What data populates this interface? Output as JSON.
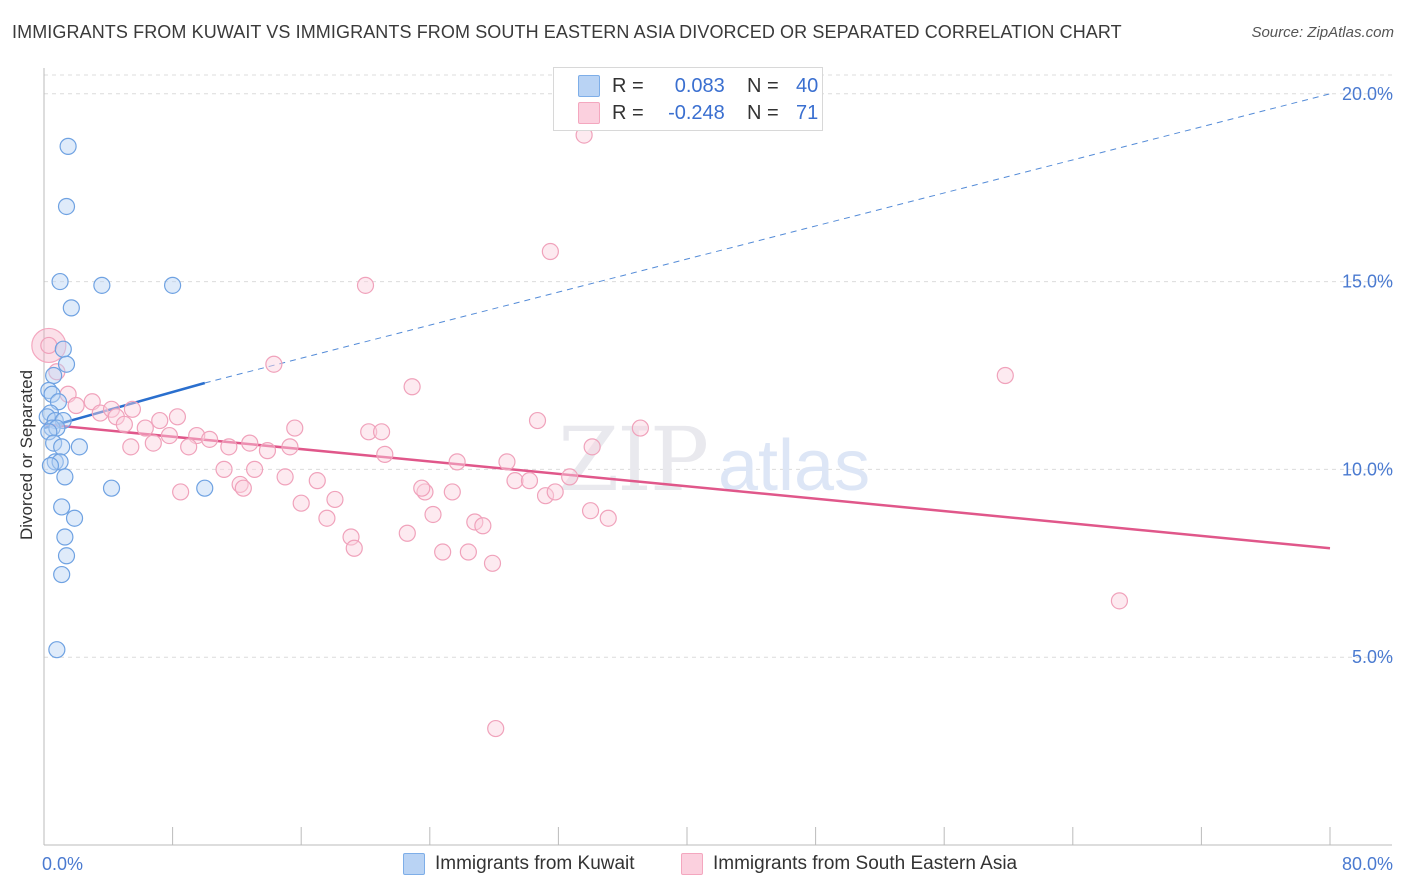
{
  "chart_data": {
    "type": "scatter",
    "title": "IMMIGRANTS FROM KUWAIT VS IMMIGRANTS FROM SOUTH EASTERN ASIA DIVORCED OR SEPARATED CORRELATION CHART",
    "source": "Source: ZipAtlas.com",
    "ylabel": "Divorced or Separated",
    "xlabel": "",
    "xlim": [
      0,
      80
    ],
    "ylim": [
      0,
      20.5
    ],
    "x_tick_labels": [
      "0.0%",
      "80.0%"
    ],
    "y_ticks": [
      5,
      10,
      15,
      20
    ],
    "y_tick_labels": [
      "5.0%",
      "10.0%",
      "15.0%",
      "20.0%"
    ],
    "grid": true,
    "legend_position": "top-center",
    "watermark": "ZIPatlas",
    "series": [
      {
        "name": "Immigrants from Kuwait",
        "color": "#7eaee8",
        "r": "0.083",
        "n": "40",
        "trend": {
          "x0": 0,
          "y0": 11.1,
          "x1": 10,
          "y1": 12.3,
          "dashed_to_x": 80,
          "dashed_to_y": 20.0,
          "color": "#2a6fce"
        },
        "points": [
          [
            1.5,
            18.6
          ],
          [
            1.4,
            17.0
          ],
          [
            1.0,
            15.0
          ],
          [
            3.6,
            14.9
          ],
          [
            8.0,
            14.9
          ],
          [
            1.7,
            14.3
          ],
          [
            1.2,
            13.2
          ],
          [
            1.4,
            12.8
          ],
          [
            0.6,
            12.5
          ],
          [
            0.3,
            12.1
          ],
          [
            0.5,
            12.0
          ],
          [
            0.9,
            11.8
          ],
          [
            0.4,
            11.5
          ],
          [
            0.2,
            11.4
          ],
          [
            0.7,
            11.3
          ],
          [
            1.2,
            11.3
          ],
          [
            0.5,
            11.1
          ],
          [
            0.8,
            11.1
          ],
          [
            0.3,
            11.0
          ],
          [
            0.6,
            10.7
          ],
          [
            1.1,
            10.6
          ],
          [
            2.2,
            10.6
          ],
          [
            0.7,
            10.2
          ],
          [
            1.0,
            10.2
          ],
          [
            0.4,
            10.1
          ],
          [
            1.3,
            9.8
          ],
          [
            4.2,
            9.5
          ],
          [
            10.0,
            9.5
          ],
          [
            1.1,
            9.0
          ],
          [
            1.9,
            8.7
          ],
          [
            1.3,
            8.2
          ],
          [
            1.4,
            7.7
          ],
          [
            1.1,
            7.2
          ],
          [
            0.8,
            5.2
          ]
        ]
      },
      {
        "name": "Immigrants from South Eastern Asia",
        "color": "#f4a7bf",
        "r": "-0.248",
        "n": "71",
        "trend": {
          "x0": 0,
          "y0": 11.2,
          "x1": 80,
          "y1": 7.9,
          "color": "#e0578a"
        },
        "points": [
          [
            0.3,
            13.3
          ],
          [
            0.8,
            12.6
          ],
          [
            1.5,
            12.0
          ],
          [
            2.0,
            11.7
          ],
          [
            3.0,
            11.8
          ],
          [
            3.5,
            11.5
          ],
          [
            4.2,
            11.6
          ],
          [
            5.5,
            11.6
          ],
          [
            4.5,
            11.4
          ],
          [
            5.0,
            11.2
          ],
          [
            6.3,
            11.1
          ],
          [
            7.2,
            11.3
          ],
          [
            8.3,
            11.4
          ],
          [
            5.4,
            10.6
          ],
          [
            6.8,
            10.7
          ],
          [
            7.8,
            10.9
          ],
          [
            9.5,
            10.9
          ],
          [
            9.0,
            10.6
          ],
          [
            10.3,
            10.8
          ],
          [
            11.5,
            10.6
          ],
          [
            12.8,
            10.7
          ],
          [
            13.9,
            10.5
          ],
          [
            15.3,
            10.6
          ],
          [
            11.2,
            10.0
          ],
          [
            13.1,
            10.0
          ],
          [
            15.0,
            9.8
          ],
          [
            12.2,
            9.6
          ],
          [
            12.4,
            9.5
          ],
          [
            17.0,
            9.7
          ],
          [
            8.5,
            9.4
          ],
          [
            14.3,
            12.8
          ],
          [
            15.6,
            11.1
          ],
          [
            20.0,
            14.9
          ],
          [
            22.9,
            12.2
          ],
          [
            20.2,
            11.0
          ],
          [
            21.0,
            11.0
          ],
          [
            21.2,
            10.4
          ],
          [
            18.1,
            9.2
          ],
          [
            16.0,
            9.1
          ],
          [
            17.6,
            8.7
          ],
          [
            23.7,
            9.4
          ],
          [
            23.5,
            9.5
          ],
          [
            25.4,
            9.4
          ],
          [
            25.7,
            10.2
          ],
          [
            24.2,
            8.8
          ],
          [
            24.8,
            7.8
          ],
          [
            22.6,
            8.3
          ],
          [
            26.8,
            8.6
          ],
          [
            27.3,
            8.5
          ],
          [
            26.4,
            7.8
          ],
          [
            27.9,
            7.5
          ],
          [
            19.1,
            8.2
          ],
          [
            19.3,
            7.9
          ],
          [
            28.8,
            10.2
          ],
          [
            29.3,
            9.7
          ],
          [
            30.2,
            9.7
          ],
          [
            30.7,
            11.3
          ],
          [
            31.2,
            9.3
          ],
          [
            31.8,
            9.4
          ],
          [
            32.7,
            9.8
          ],
          [
            33.6,
            18.9
          ],
          [
            31.5,
            15.8
          ],
          [
            34.1,
            10.6
          ],
          [
            37.1,
            11.1
          ],
          [
            34.0,
            8.9
          ],
          [
            35.1,
            8.7
          ],
          [
            59.8,
            12.5
          ],
          [
            66.9,
            6.5
          ],
          [
            28.1,
            3.1
          ]
        ]
      }
    ]
  }
}
